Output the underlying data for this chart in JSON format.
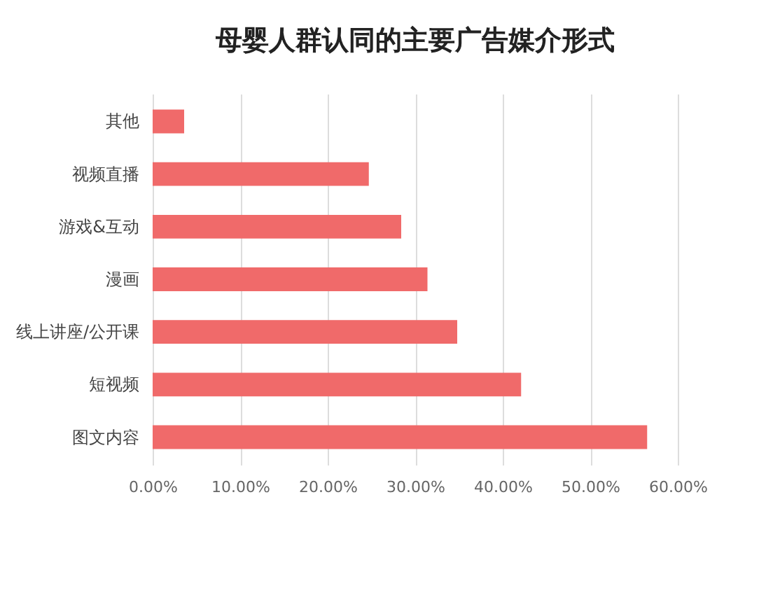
{
  "chart_data": {
    "type": "bar",
    "orientation": "horizontal",
    "title": "母婴人群认同的主要广告媒介形式",
    "categories": [
      "其他",
      "视频直播",
      "游戏&互动",
      "漫画",
      "线上讲座/公开课",
      "短视频",
      "图文内容"
    ],
    "values": [
      3.6,
      24.7,
      28.4,
      31.4,
      34.8,
      42.1,
      56.5
    ],
    "color": "#f06a6a",
    "xlim": [
      0,
      60
    ],
    "xticks": [
      {
        "value": 0,
        "label": "0.00%"
      },
      {
        "value": 10,
        "label": "10.00%"
      },
      {
        "value": 20,
        "label": "20.00%"
      },
      {
        "value": 30,
        "label": "30.00%"
      },
      {
        "value": 40,
        "label": "40.00%"
      },
      {
        "value": 50,
        "label": "50.00%"
      },
      {
        "value": 60,
        "label": "60.00%"
      }
    ],
    "grid": "x"
  }
}
